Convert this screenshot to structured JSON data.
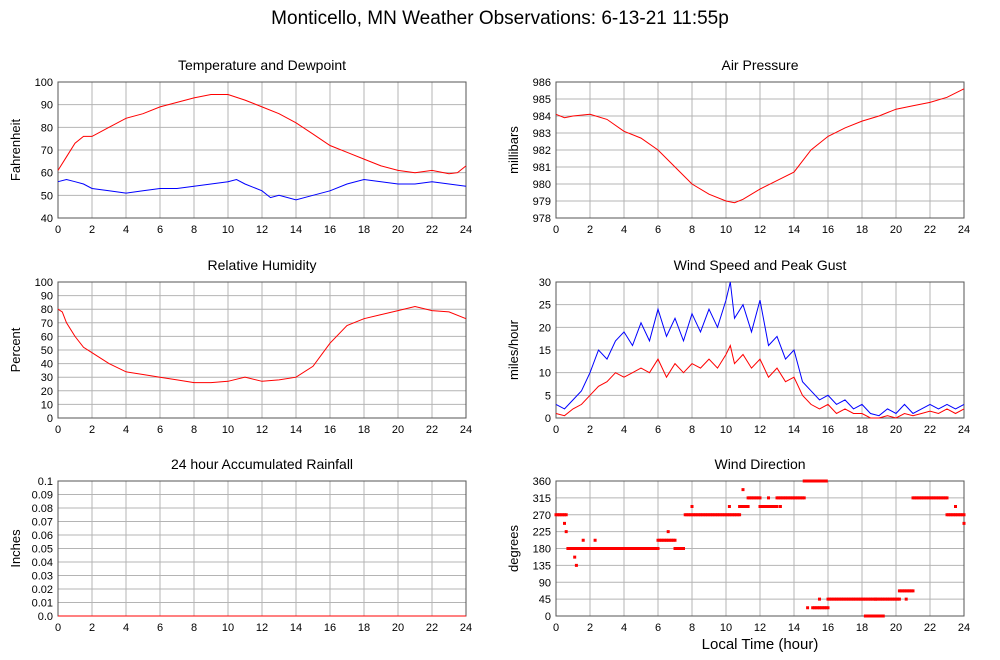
{
  "page": {
    "title": "Monticello, MN Weather Observations: 6-13-21 11:55p",
    "x_axis_label": "Local Time (hour)"
  },
  "chart_data": [
    {
      "type": "line",
      "title": "Temperature and Dewpoint",
      "xlabel": "",
      "ylabel": "Fahrenheit",
      "xlim": [
        0,
        24
      ],
      "ylim": [
        40,
        100
      ],
      "xticks": [
        0,
        2,
        4,
        6,
        8,
        10,
        12,
        14,
        16,
        18,
        20,
        22,
        24
      ],
      "yticks": [
        40,
        50,
        60,
        70,
        80,
        90,
        100
      ],
      "grid": true,
      "series": [
        {
          "color": "#ff0000",
          "x": [
            0,
            0.5,
            1,
            1.5,
            2,
            3,
            4,
            5,
            6,
            7,
            8,
            9,
            10,
            11,
            12,
            13,
            14,
            15,
            16,
            17,
            18,
            19,
            20,
            21,
            22,
            23,
            23.5,
            24
          ],
          "y": [
            61,
            67,
            73,
            76,
            76,
            80,
            84,
            86,
            89,
            91,
            93,
            94.5,
            94.5,
            92,
            89,
            86,
            82,
            77,
            72,
            69,
            66,
            63,
            61,
            60,
            61,
            59.5,
            60,
            63
          ]
        },
        {
          "color": "#0000ff",
          "x": [
            0,
            0.5,
            1,
            1.5,
            2,
            3,
            4,
            5,
            6,
            7,
            8,
            9,
            10,
            10.5,
            11,
            12,
            12.5,
            13,
            14,
            15,
            16,
            17,
            18,
            19,
            20,
            21,
            22,
            23,
            24
          ],
          "y": [
            56,
            57,
            56,
            55,
            53,
            52,
            51,
            52,
            53,
            53,
            54,
            55,
            56,
            57,
            55,
            52,
            49,
            50,
            48,
            50,
            52,
            55,
            57,
            56,
            55,
            55,
            56,
            55,
            54
          ]
        }
      ]
    },
    {
      "type": "line",
      "title": "Air Pressure",
      "xlabel": "",
      "ylabel": "millibars",
      "xlim": [
        0,
        24
      ],
      "ylim": [
        978,
        986
      ],
      "xticks": [
        0,
        2,
        4,
        6,
        8,
        10,
        12,
        14,
        16,
        18,
        20,
        22,
        24
      ],
      "yticks": [
        978,
        979,
        980,
        981,
        982,
        983,
        984,
        985,
        986
      ],
      "grid": true,
      "series": [
        {
          "color": "#ff0000",
          "x": [
            0,
            0.5,
            1,
            2,
            3,
            4,
            5,
            6,
            7,
            8,
            9,
            10,
            10.5,
            11,
            12,
            13,
            14,
            15,
            16,
            17,
            18,
            19,
            20,
            21,
            22,
            23,
            24
          ],
          "y": [
            984.1,
            983.9,
            984.0,
            984.1,
            983.8,
            983.1,
            982.7,
            982.0,
            981.0,
            980.0,
            979.4,
            979.0,
            978.9,
            979.1,
            979.7,
            980.2,
            980.7,
            982.0,
            982.8,
            983.3,
            983.7,
            984.0,
            984.4,
            984.6,
            984.8,
            985.1,
            985.6
          ]
        }
      ]
    },
    {
      "type": "line",
      "title": "Relative Humidity",
      "xlabel": "",
      "ylabel": "Percent",
      "xlim": [
        0,
        24
      ],
      "ylim": [
        0,
        100
      ],
      "xticks": [
        0,
        2,
        4,
        6,
        8,
        10,
        12,
        14,
        16,
        18,
        20,
        22,
        24
      ],
      "yticks": [
        0,
        10,
        20,
        30,
        40,
        50,
        60,
        70,
        80,
        90,
        100
      ],
      "grid": true,
      "series": [
        {
          "color": "#ff0000",
          "x": [
            0,
            0.25,
            0.5,
            1,
            1.5,
            2,
            3,
            4,
            5,
            6,
            7,
            8,
            9,
            10,
            11,
            12,
            13,
            14,
            15,
            16,
            17,
            18,
            19,
            20,
            21,
            22,
            23,
            24
          ],
          "y": [
            80,
            78,
            70,
            60,
            52,
            48,
            40,
            34,
            32,
            30,
            28,
            26,
            26,
            27,
            30,
            27,
            28,
            30,
            38,
            55,
            68,
            73,
            76,
            79,
            82,
            79,
            78,
            73
          ]
        }
      ]
    },
    {
      "type": "line",
      "title": "Wind Speed and Peak Gust",
      "xlabel": "",
      "ylabel": "miles/hour",
      "xlim": [
        0,
        24
      ],
      "ylim": [
        0,
        30
      ],
      "xticks": [
        0,
        2,
        4,
        6,
        8,
        10,
        12,
        14,
        16,
        18,
        20,
        22,
        24
      ],
      "yticks": [
        0,
        5,
        10,
        15,
        20,
        25,
        30
      ],
      "grid": true,
      "series": [
        {
          "color": "#0000ff",
          "x": [
            0,
            0.5,
            1,
            1.5,
            2,
            2.5,
            3,
            3.5,
            4,
            4.5,
            5,
            5.5,
            6,
            6.5,
            7,
            7.5,
            8,
            8.5,
            9,
            9.5,
            10,
            10.25,
            10.5,
            11,
            11.5,
            12,
            12.5,
            13,
            13.5,
            14,
            14.5,
            15,
            15.5,
            16,
            16.5,
            17,
            17.5,
            18,
            18.5,
            19,
            19.5,
            20,
            20.5,
            21,
            21.5,
            22,
            22.5,
            23,
            23.5,
            24
          ],
          "y": [
            3,
            2,
            4,
            6,
            10,
            15,
            13,
            17,
            19,
            16,
            21,
            17,
            24,
            18,
            22,
            17,
            23,
            19,
            24,
            20,
            26,
            30,
            22,
            25,
            19,
            26,
            16,
            18,
            13,
            15,
            8,
            6,
            4,
            5,
            3,
            4,
            2,
            3,
            1,
            0.5,
            2,
            1,
            3,
            1,
            2,
            3,
            2,
            3,
            2,
            3
          ]
        },
        {
          "color": "#ff0000",
          "x": [
            0,
            0.5,
            1,
            1.5,
            2,
            2.5,
            3,
            3.5,
            4,
            4.5,
            5,
            5.5,
            6,
            6.5,
            7,
            7.5,
            8,
            8.5,
            9,
            9.5,
            10,
            10.25,
            10.5,
            11,
            11.5,
            12,
            12.5,
            13,
            13.5,
            14,
            14.5,
            15,
            15.5,
            16,
            16.5,
            17,
            17.5,
            18,
            18.5,
            19,
            19.5,
            20,
            20.5,
            21,
            21.5,
            22,
            22.5,
            23,
            23.5,
            24
          ],
          "y": [
            1,
            0.5,
            2,
            3,
            5,
            7,
            8,
            10,
            9,
            10,
            11,
            10,
            13,
            9,
            12,
            10,
            12,
            11,
            13,
            11,
            14,
            16,
            12,
            14,
            11,
            13,
            9,
            11,
            8,
            9,
            5,
            3,
            2,
            3,
            1,
            2,
            1,
            1,
            0,
            0,
            0.5,
            0,
            1,
            0.5,
            1,
            1.5,
            1,
            2,
            1,
            2
          ]
        }
      ]
    },
    {
      "type": "line",
      "title": "24 hour Accumulated Rainfall",
      "xlabel": "",
      "ylabel": "Inches",
      "xlim": [
        0,
        24
      ],
      "ylim": [
        0,
        0.1
      ],
      "xticks": [
        0,
        2,
        4,
        6,
        8,
        10,
        12,
        14,
        16,
        18,
        20,
        22,
        24
      ],
      "yticks": [
        "0.0",
        "0.01",
        "0.02",
        "0.03",
        "0.04",
        "0.05",
        "0.06",
        "0.07",
        "0.08",
        "0.09",
        "0.1"
      ],
      "grid": true,
      "series": [
        {
          "color": "#ff0000",
          "x": [
            0,
            24
          ],
          "y": [
            0,
            0
          ]
        }
      ]
    },
    {
      "type": "scatter",
      "title": "Wind Direction",
      "xlabel": "Local Time (hour)",
      "ylabel": "degrees",
      "xlim": [
        0,
        24
      ],
      "ylim": [
        0,
        360
      ],
      "xticks": [
        0,
        2,
        4,
        6,
        8,
        10,
        12,
        14,
        16,
        18,
        20,
        22,
        24
      ],
      "yticks": [
        0,
        45,
        90,
        135,
        180,
        225,
        270,
        315,
        360
      ],
      "grid": true,
      "series": [
        {
          "color": "#ff0000",
          "segments": [
            {
              "x0": 0,
              "x1": 0.6,
              "step": 0.1,
              "y": 270
            },
            {
              "x0": 0.7,
              "x1": 6.0,
              "step": 0.1,
              "y": 180
            },
            {
              "x0": 6.0,
              "x1": 7.0,
              "step": 0.1,
              "y": 202
            },
            {
              "x0": 7.0,
              "x1": 7.5,
              "step": 0.1,
              "y": 180
            },
            {
              "x0": 7.6,
              "x1": 10.8,
              "step": 0.1,
              "y": 270
            },
            {
              "x0": 10.8,
              "x1": 11.3,
              "step": 0.1,
              "y": 292
            },
            {
              "x0": 11.3,
              "x1": 12.0,
              "step": 0.1,
              "y": 315
            },
            {
              "x0": 12.0,
              "x1": 13.0,
              "step": 0.1,
              "y": 292
            },
            {
              "x0": 13.0,
              "x1": 14.6,
              "step": 0.1,
              "y": 315
            },
            {
              "x0": 14.6,
              "x1": 15.9,
              "step": 0.1,
              "y": 360
            },
            {
              "x0": 15.1,
              "x1": 16.0,
              "step": 0.1,
              "y": 22
            },
            {
              "x0": 16.0,
              "x1": 20.2,
              "step": 0.1,
              "y": 45
            },
            {
              "x0": 18.2,
              "x1": 19.3,
              "step": 0.15,
              "y": 0
            },
            {
              "x0": 20.2,
              "x1": 21.0,
              "step": 0.1,
              "y": 67
            },
            {
              "x0": 21.0,
              "x1": 23.0,
              "step": 0.1,
              "y": 315
            },
            {
              "x0": 23.0,
              "x1": 24.0,
              "step": 0.1,
              "y": 270
            }
          ],
          "points": [
            {
              "x": 0.5,
              "y": 247
            },
            {
              "x": 0.6,
              "y": 225
            },
            {
              "x": 1.1,
              "y": 157
            },
            {
              "x": 1.2,
              "y": 135
            },
            {
              "x": 1.4,
              "y": 180
            },
            {
              "x": 1.6,
              "y": 202
            },
            {
              "x": 2.3,
              "y": 202
            },
            {
              "x": 6.6,
              "y": 225
            },
            {
              "x": 7.2,
              "y": 180
            },
            {
              "x": 8.0,
              "y": 292
            },
            {
              "x": 10.2,
              "y": 292
            },
            {
              "x": 11.0,
              "y": 337
            },
            {
              "x": 12.5,
              "y": 315
            },
            {
              "x": 13.2,
              "y": 292
            },
            {
              "x": 14.8,
              "y": 22
            },
            {
              "x": 15.5,
              "y": 45
            },
            {
              "x": 18.8,
              "y": 45
            },
            {
              "x": 20.6,
              "y": 45
            },
            {
              "x": 23.5,
              "y": 292
            },
            {
              "x": 24.0,
              "y": 247
            }
          ]
        }
      ]
    }
  ]
}
